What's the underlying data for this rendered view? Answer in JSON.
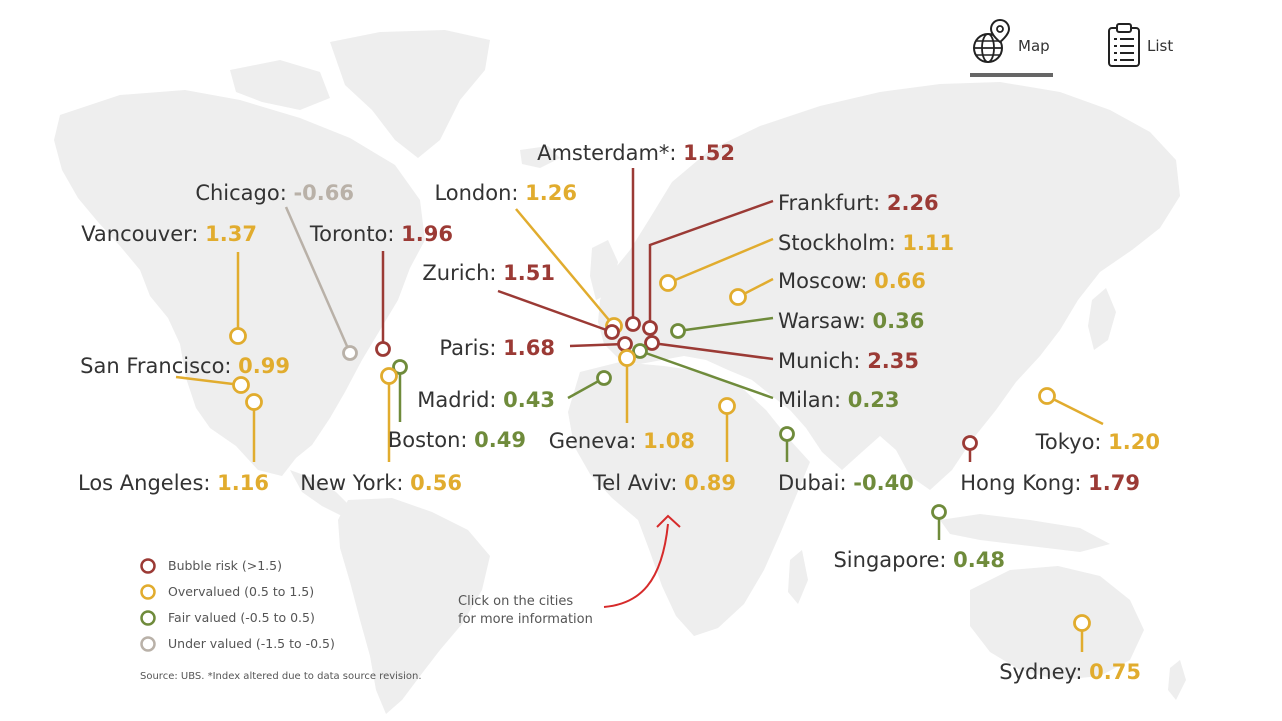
{
  "tabs": [
    {
      "label": "Map",
      "icon": "globe-pin-icon",
      "active": true
    },
    {
      "label": "List",
      "icon": "clipboard-list-icon",
      "active": false
    }
  ],
  "colors": {
    "bubble_risk": "#9b3a35",
    "overvalued": "#e1ac2e",
    "fair_valued": "#6f8b3b",
    "under_valued": "#b9b1a8",
    "text": "#333333",
    "map": "#eeeeee",
    "annotation_arrow": "#d62b2b"
  },
  "cities": [
    {
      "name": "Amsterdam*:",
      "value": "1.52",
      "category": "bubble_risk"
    },
    {
      "name": "Chicago:",
      "value": "-0.66",
      "category": "under_valued"
    },
    {
      "name": "London:",
      "value": "1.26",
      "category": "overvalued"
    },
    {
      "name": "Frankfurt:",
      "value": "2.26",
      "category": "bubble_risk"
    },
    {
      "name": "Vancouver:",
      "value": "1.37",
      "category": "overvalued"
    },
    {
      "name": "Toronto:",
      "value": "1.96",
      "category": "bubble_risk"
    },
    {
      "name": "Stockholm:",
      "value": "1.11",
      "category": "overvalued"
    },
    {
      "name": "Zurich:",
      "value": "1.51",
      "category": "bubble_risk"
    },
    {
      "name": "Moscow:",
      "value": "0.66",
      "category": "overvalued"
    },
    {
      "name": "Warsaw:",
      "value": "0.36",
      "category": "fair_valued"
    },
    {
      "name": "Paris:",
      "value": "1.68",
      "category": "bubble_risk"
    },
    {
      "name": "Munich:",
      "value": "2.35",
      "category": "bubble_risk"
    },
    {
      "name": "San Francisco:",
      "value": "0.99",
      "category": "overvalued"
    },
    {
      "name": "Madrid:",
      "value": "0.43",
      "category": "fair_valued"
    },
    {
      "name": "Milan:",
      "value": "0.23",
      "category": "fair_valued"
    },
    {
      "name": "Boston:",
      "value": "0.49",
      "category": "fair_valued"
    },
    {
      "name": "Geneva:",
      "value": "1.08",
      "category": "overvalued"
    },
    {
      "name": "Tokyo:",
      "value": "1.20",
      "category": "overvalued"
    },
    {
      "name": "Los Angeles:",
      "value": "1.16",
      "category": "overvalued"
    },
    {
      "name": "New York:",
      "value": "0.56",
      "category": "overvalued"
    },
    {
      "name": "Tel Aviv:",
      "value": "0.89",
      "category": "overvalued"
    },
    {
      "name": "Dubai:",
      "value": "-0.40",
      "category": "fair_valued"
    },
    {
      "name": "Hong Kong:",
      "value": "1.79",
      "category": "bubble_risk"
    },
    {
      "name": "Singapore:",
      "value": "0.48",
      "category": "fair_valued"
    },
    {
      "name": "Sydney:",
      "value": "0.75",
      "category": "overvalued"
    }
  ],
  "legend": [
    {
      "label": "Bubble risk (>1.5)",
      "category": "bubble_risk"
    },
    {
      "label": "Overvalued (0.5 to 1.5)",
      "category": "overvalued"
    },
    {
      "label": "Fair valued (-0.5 to 0.5)",
      "category": "fair_valued"
    },
    {
      "label": "Under valued (-1.5 to -0.5)",
      "category": "under_valued"
    }
  ],
  "note": {
    "line1": "Click on the cities",
    "line2": "for more information"
  },
  "source": "Source: UBS. *Index altered due to data source revision."
}
